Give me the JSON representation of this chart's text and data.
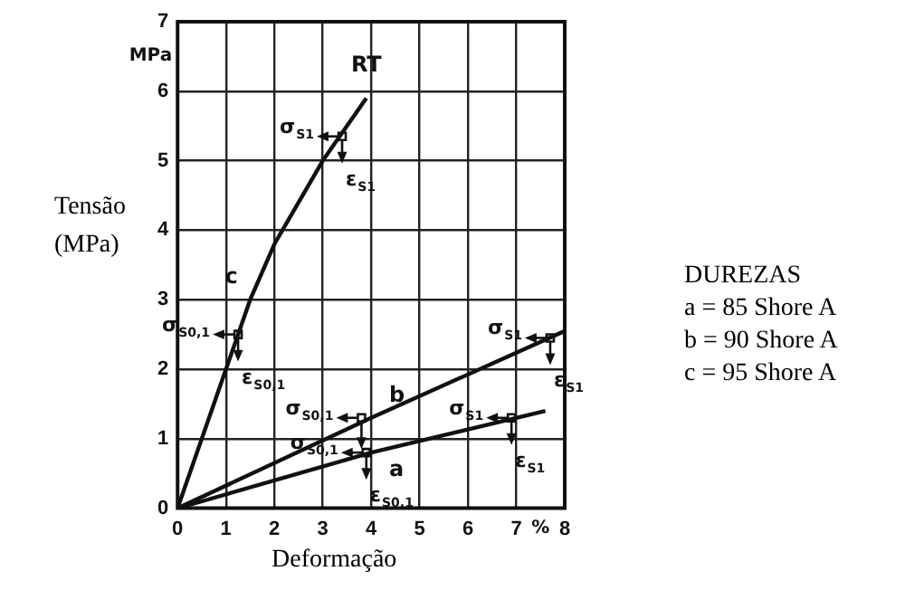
{
  "chart_data": {
    "type": "line",
    "xlabel": "Deformação",
    "ylabel": "Tensão (MPa)",
    "legend_title": "DUREZAS",
    "xlim": [
      0,
      8
    ],
    "xticks": [
      0,
      1,
      2,
      3,
      4,
      5,
      6,
      7,
      8
    ],
    "ylim": [
      0,
      7
    ],
    "yticks": [
      0,
      1,
      2,
      3,
      4,
      5,
      6,
      7
    ],
    "grid": true,
    "marker": "none",
    "line_style": "solid",
    "series": [
      {
        "name": "c",
        "color": "#111111",
        "x": [
          0,
          0.5,
          1,
          1.5,
          2,
          3,
          3.9
        ],
        "values": [
          0,
          1,
          2,
          3,
          3.8,
          5,
          5.9
        ]
      },
      {
        "name": "b",
        "color": "#111111",
        "x": [
          0,
          4,
          8
        ],
        "values": [
          0,
          1.3,
          2.55
        ]
      },
      {
        "name": "a",
        "color": "#111111",
        "x": [
          0,
          4,
          7.6
        ],
        "values": [
          0,
          0.8,
          1.4
        ]
      }
    ],
    "annotations": [
      {
        "text": "RT",
        "x": 3.9,
        "y": 5.9
      },
      {
        "text": "σ$_{S1}$",
        "x": 3.4,
        "y": 5.35
      },
      {
        "text": "ε$_{S1}$",
        "x": 3.4,
        "y": 5.35
      },
      {
        "text": "σ$_{S0,1}$",
        "x": 1.25,
        "y": 2.5
      },
      {
        "text": "ε$_{S0,1}$",
        "x": 1.25,
        "y": 2.5
      },
      {
        "text": "σ$_{S0,1}$",
        "x": 3.8,
        "y": 1.3
      },
      {
        "text": "σ$_{S0,1}$",
        "x": 3.9,
        "y": 0.8
      },
      {
        "text": "ε$_{S0,1}$",
        "x": 3.9,
        "y": 0.8
      },
      {
        "text": "σ$_{S1}$",
        "x": 7.7,
        "y": 2.45
      },
      {
        "text": "ε$_{S1}$",
        "x": 7.7,
        "y": 2.45
      },
      {
        "text": "σ$_{S1}$",
        "x": 6.9,
        "y": 1.3
      },
      {
        "text": "ε$_{S1}$",
        "x": 6.9,
        "y": 1.3
      },
      "MPa",
      "%",
      "a = 85 Shore A",
      "b = 90 Shore A",
      "c = 95 Shore A"
    ]
  }
}
